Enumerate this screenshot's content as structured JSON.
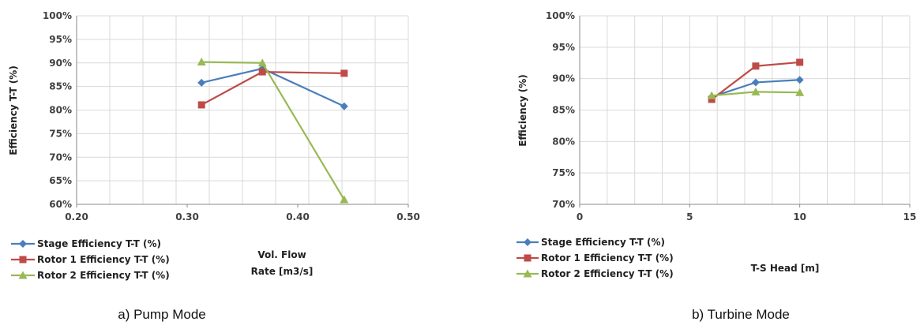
{
  "chart_data": [
    {
      "type": "line",
      "caption": "a)    Pump Mode",
      "xlabel": [
        "Vol. Flow",
        "Rate [m3/s]"
      ],
      "ylabel": "Efficiency T-T (%)",
      "xlim": [
        0.2,
        0.5
      ],
      "ylim": [
        60,
        100
      ],
      "x_ticks": [
        "0.20",
        "0.30",
        "0.40",
        "0.50"
      ],
      "y_ticks": [
        "60%",
        "65%",
        "70%",
        "75%",
        "80%",
        "85%",
        "90%",
        "95%",
        "100%"
      ],
      "grid": true,
      "legend_position": "bottom-left",
      "series": [
        {
          "name": "Stage Efficiency T-T (%)",
          "color": "#4a7ebb",
          "marker": "diamond",
          "x": [
            0.313,
            0.368,
            0.442
          ],
          "y": [
            85.8,
            88.8,
            80.8
          ]
        },
        {
          "name": "Rotor 1 Efficiency T-T (%)",
          "color": "#be4b48",
          "marker": "square",
          "x": [
            0.313,
            0.368,
            0.442
          ],
          "y": [
            81.1,
            88.1,
            87.8
          ]
        },
        {
          "name": "Rotor 2 Efficiency T-T (%)",
          "color": "#98b954",
          "marker": "triangle",
          "x": [
            0.313,
            0.368,
            0.442
          ],
          "y": [
            90.2,
            90.0,
            61.0
          ]
        }
      ]
    },
    {
      "type": "line",
      "caption": "b) Turbine Mode",
      "xlabel": [
        "T-S Head [m]"
      ],
      "ylabel": "Efficiency (%)",
      "xlim": [
        0,
        15
      ],
      "ylim": [
        70,
        100
      ],
      "x_ticks": [
        "0",
        "5",
        "10",
        "15"
      ],
      "y_ticks": [
        "70%",
        "75%",
        "80%",
        "85%",
        "90%",
        "95%",
        "100%"
      ],
      "grid": true,
      "legend_position": "bottom-left",
      "series": [
        {
          "name": "Stage Efficiency T-T (%)",
          "color": "#4a7ebb",
          "marker": "diamond",
          "x": [
            6,
            8,
            10
          ],
          "y": [
            87.1,
            89.4,
            89.8
          ]
        },
        {
          "name": "Rotor 1 Efficiency T-T (%)",
          "color": "#be4b48",
          "marker": "square",
          "x": [
            6,
            8,
            10
          ],
          "y": [
            86.7,
            92.0,
            92.6
          ]
        },
        {
          "name": "Rotor 2 Efficiency T-T (%)",
          "color": "#98b954",
          "marker": "triangle",
          "x": [
            6,
            8,
            10
          ],
          "y": [
            87.3,
            87.9,
            87.8
          ]
        }
      ]
    }
  ]
}
